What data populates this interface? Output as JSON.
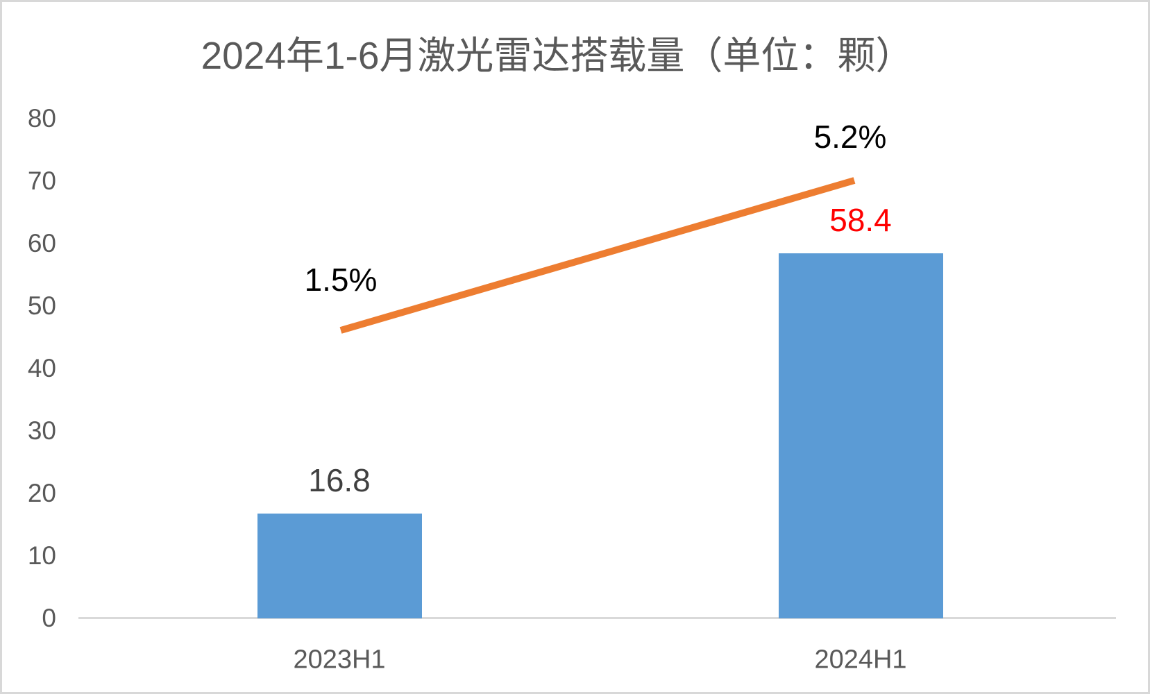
{
  "chart_data": {
    "type": "bar",
    "title": "2024年1-6月激光雷达搭载量（单位：颗）",
    "categories": [
      "2023H1",
      "2024H1"
    ],
    "series": [
      {
        "type": "bar",
        "values": [
          16.8,
          58.4
        ],
        "data_labels": [
          "16.8",
          "58.4"
        ],
        "data_label_colors": [
          "#404040",
          "#FF0000"
        ],
        "color": "#5B9BD5"
      },
      {
        "type": "line",
        "values": [
          1.5,
          5.2
        ],
        "unit": "percent",
        "data_labels": [
          "1.5%",
          "5.2%"
        ],
        "data_label_color": "#000000",
        "color": "#ED7D31",
        "axis": "secondary-hidden"
      }
    ],
    "xlabel": "",
    "ylabel": "",
    "ylim": [
      0,
      80
    ],
    "yticks": [
      0,
      10,
      20,
      30,
      40,
      50,
      60,
      70,
      80
    ],
    "grid": false,
    "legend": "none",
    "colors": {
      "bar": "#5B9BD5",
      "line": "#ED7D31",
      "title_text": "#595959",
      "tick_text": "#595959",
      "axis_line": "#D9D9D9",
      "border": "#D8D8D8",
      "background": "#FFFFFF"
    }
  }
}
